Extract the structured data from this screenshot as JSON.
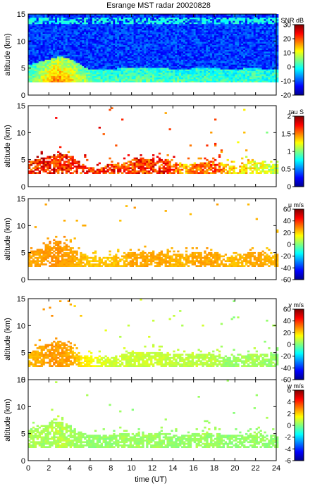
{
  "chart_data": [
    {
      "type": "heatmap",
      "title": "Esrange MST radar 20020828",
      "ylabel": "altitude (km)",
      "ylim": [
        0,
        15
      ],
      "yticks": [
        "0",
        "5",
        "10",
        "15"
      ],
      "xlim": [
        0,
        24
      ],
      "colorbar": {
        "label": "SNR dB",
        "range": [
          -20,
          30
        ],
        "ticks": [
          "30",
          "20",
          "10",
          "0",
          "-10",
          "-20"
        ]
      },
      "x_hours": [
        0,
        1,
        2,
        3,
        4,
        5,
        6,
        7,
        8,
        9,
        10,
        11,
        12,
        13,
        14,
        15,
        16,
        17,
        18,
        19,
        20,
        21,
        22,
        23
      ],
      "echo_top_km": [
        5.5,
        6.0,
        6.5,
        7.0,
        6.5,
        5.5,
        4.5,
        4.5,
        4.5,
        5.0,
        5.0,
        5.0,
        5.0,
        5.0,
        4.5,
        4.5,
        5.0,
        5.0,
        5.0,
        4.5,
        4.5,
        5.0,
        5.0,
        4.5
      ],
      "peak_value": [
        5,
        10,
        18,
        20,
        16,
        10,
        6,
        4,
        4,
        4,
        5,
        5,
        5,
        4,
        4,
        4,
        4,
        4,
        4,
        3,
        3,
        4,
        4,
        3
      ]
    },
    {
      "type": "heatmap",
      "ylabel": "altitude (km)",
      "ylim": [
        0,
        15
      ],
      "yticks": [
        "0",
        "5",
        "10",
        "15"
      ],
      "xlim": [
        0,
        24
      ],
      "colorbar": {
        "label": "tau S",
        "range": [
          0,
          2
        ],
        "ticks": [
          "2",
          "1.5",
          "1",
          "0.5",
          "0"
        ]
      },
      "x_hours": [
        0,
        1,
        2,
        3,
        4,
        5,
        6,
        7,
        8,
        9,
        10,
        11,
        12,
        13,
        14,
        15,
        16,
        17,
        18,
        19,
        20,
        21,
        22,
        23
      ],
      "echo_top_km": [
        4.5,
        5.0,
        5.5,
        6.0,
        5.5,
        4.0,
        3.5,
        3.5,
        4.0,
        4.0,
        5.0,
        5.0,
        5.0,
        5.0,
        4.5,
        4.0,
        4.0,
        4.5,
        4.5,
        4.0,
        3.5,
        4.5,
        4.5,
        4.0
      ],
      "peak_value": [
        1.95,
        1.95,
        1.95,
        1.95,
        1.9,
        1.9,
        1.9,
        1.9,
        1.9,
        1.8,
        1.9,
        1.9,
        1.9,
        1.9,
        1.8,
        1.6,
        1.7,
        1.8,
        1.8,
        1.6,
        1.5,
        1.5,
        1.4,
        1.3
      ]
    },
    {
      "type": "heatmap",
      "ylabel": "altitude (km)",
      "ylim": [
        0,
        15
      ],
      "yticks": [
        "0",
        "5",
        "10",
        "15"
      ],
      "xlim": [
        0,
        24
      ],
      "colorbar": {
        "label": "u m/s",
        "range": [
          -60,
          60
        ],
        "ticks": [
          "60",
          "40",
          "20",
          "0",
          "-20",
          "-40",
          "-60"
        ]
      },
      "x_hours": [
        0,
        1,
        2,
        3,
        4,
        5,
        6,
        7,
        8,
        9,
        10,
        11,
        12,
        13,
        14,
        15,
        16,
        17,
        18,
        19,
        20,
        21,
        22,
        23
      ],
      "echo_top_km": [
        5.0,
        5.5,
        6.5,
        7.0,
        6.0,
        5.0,
        4.0,
        4.0,
        4.0,
        4.5,
        5.0,
        5.0,
        5.0,
        5.0,
        4.5,
        4.5,
        5.0,
        5.0,
        5.0,
        4.0,
        4.5,
        4.5,
        5.0,
        4.5
      ],
      "peak_value": [
        28,
        28,
        30,
        30,
        28,
        26,
        24,
        24,
        24,
        26,
        28,
        28,
        28,
        28,
        26,
        26,
        28,
        28,
        28,
        26,
        26,
        26,
        28,
        26
      ]
    },
    {
      "type": "heatmap",
      "ylabel": "altitude (km)",
      "ylim": [
        0,
        15
      ],
      "yticks": [
        "0",
        "5",
        "10",
        "15"
      ],
      "xlim": [
        0,
        24
      ],
      "colorbar": {
        "label": "v m/s",
        "range": [
          -60,
          60
        ],
        "ticks": [
          "60",
          "40",
          "20",
          "0",
          "-20",
          "-40",
          "-60"
        ]
      },
      "x_hours": [
        0,
        1,
        2,
        3,
        4,
        5,
        6,
        7,
        8,
        9,
        10,
        11,
        12,
        13,
        14,
        15,
        16,
        17,
        18,
        19,
        20,
        21,
        22,
        23
      ],
      "echo_top_km": [
        5.0,
        6.0,
        6.5,
        7.0,
        6.0,
        4.5,
        4.0,
        4.0,
        4.0,
        4.5,
        5.0,
        5.0,
        5.0,
        5.0,
        4.5,
        4.5,
        4.5,
        4.5,
        4.5,
        4.0,
        4.0,
        4.5,
        4.5,
        4.5
      ],
      "peak_value": [
        26,
        28,
        30,
        30,
        28,
        22,
        18,
        14,
        12,
        12,
        12,
        12,
        12,
        12,
        10,
        10,
        10,
        10,
        10,
        6,
        6,
        8,
        8,
        6
      ]
    },
    {
      "type": "heatmap",
      "ylabel": "altitude (km)",
      "xlabel": "time (UT)",
      "ylim": [
        0,
        15
      ],
      "yticks": [
        "0",
        "5",
        "10",
        "15"
      ],
      "xlim": [
        0,
        24
      ],
      "xticks": [
        "0",
        "2",
        "4",
        "6",
        "8",
        "10",
        "12",
        "14",
        "16",
        "18",
        "20",
        "22",
        "24"
      ],
      "colorbar": {
        "label": "w m/s",
        "range": [
          -6,
          6
        ],
        "ticks": [
          "6",
          "4",
          "2",
          "0",
          "-2",
          "-4",
          "-6"
        ]
      },
      "x_hours": [
        0,
        1,
        2,
        3,
        4,
        5,
        6,
        7,
        8,
        9,
        10,
        11,
        12,
        13,
        14,
        15,
        16,
        17,
        18,
        19,
        20,
        21,
        22,
        23
      ],
      "echo_top_km": [
        5.5,
        6.0,
        7.0,
        7.0,
        6.5,
        5.0,
        4.5,
        4.5,
        4.5,
        5.0,
        5.0,
        5.0,
        5.0,
        5.0,
        4.5,
        4.5,
        5.0,
        5.0,
        5.0,
        4.5,
        4.5,
        4.5,
        5.0,
        4.5
      ],
      "peak_value": [
        1.0,
        1.0,
        1.0,
        1.2,
        1.0,
        0.8,
        0.6,
        0.6,
        0.6,
        0.8,
        0.8,
        0.8,
        0.8,
        0.8,
        0.6,
        0.6,
        0.8,
        0.8,
        0.8,
        0.6,
        0.6,
        0.6,
        0.8,
        0.6
      ]
    }
  ]
}
